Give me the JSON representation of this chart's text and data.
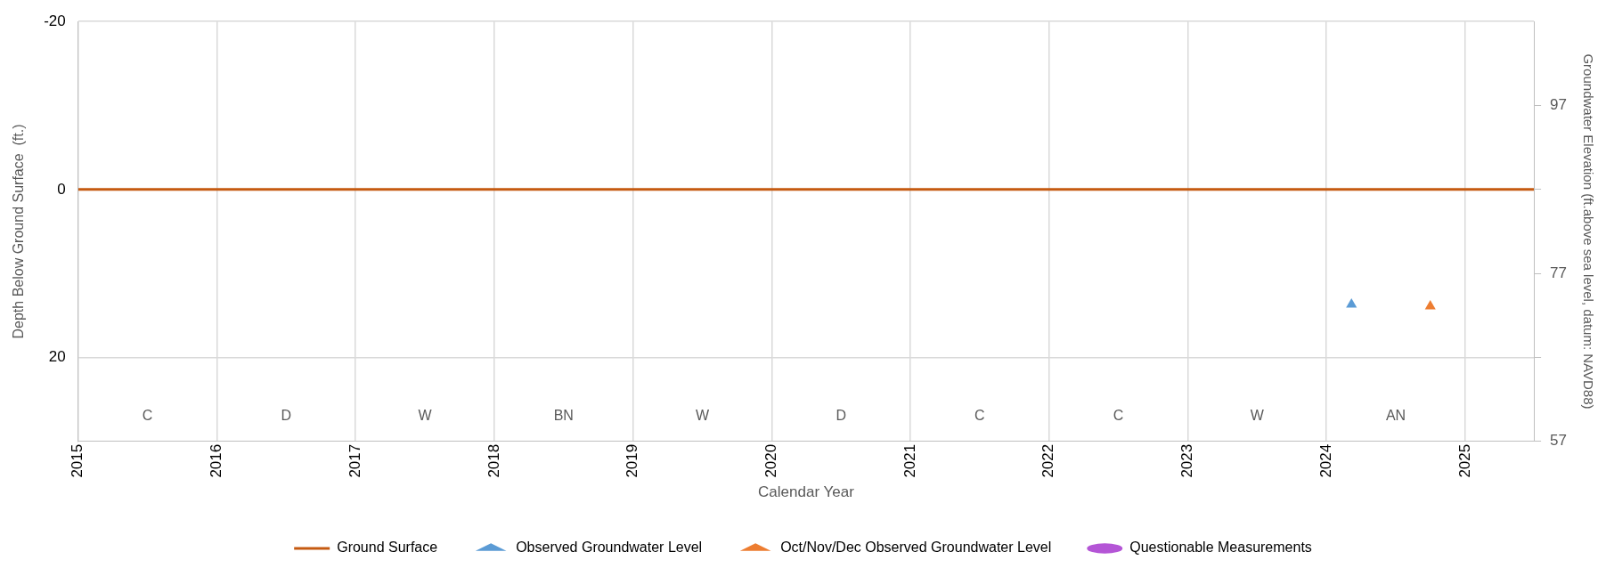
{
  "chart_data": {
    "type": "scatter",
    "xlabel": "Calendar Year",
    "ylabel": "Depth Below Ground Surface  (ft.)",
    "y2label": "Groundwater Elevation (ft.above sea level, datum: NAVD88)",
    "xlim": [
      "2015-01-01",
      "2025-07-01"
    ],
    "xticks": [
      "2015",
      "2016",
      "2017",
      "2018",
      "2019",
      "2020",
      "2021",
      "2022",
      "2023",
      "2024",
      "2025"
    ],
    "ylim": [
      30,
      -20
    ],
    "yticks": [
      -20,
      0,
      20
    ],
    "y2lim": [
      57,
      107
    ],
    "y2ticks": [
      57,
      {
        "value": 67,
        "label": null
      },
      77,
      {
        "value": 87,
        "label": null
      },
      97
    ],
    "grid": true,
    "legend": "bottom",
    "series": [
      {
        "name": "Ground Surface",
        "type": "line",
        "marker": "none",
        "color": "#c55a11",
        "x": [
          "2015-01-01",
          "2025-07-01"
        ],
        "values": [
          0,
          0
        ]
      },
      {
        "name": "Observed Groundwater Level",
        "type": "scatter",
        "marker": "triangle",
        "color": "#5b9bd5",
        "x": [
          "2024-03-07"
        ],
        "values": [
          13.7
        ]
      },
      {
        "name": "Oct/Nov/Dec Observed Groundwater Level",
        "type": "scatter",
        "marker": "triangle",
        "color": "#ed7d31",
        "x": [
          "2024-10-01"
        ],
        "values": [
          13.9
        ]
      },
      {
        "name": "Questionable Measurements",
        "type": "scatter",
        "marker": "circle",
        "color": "#b455d6"
      }
    ],
    "annotations": [
      "C",
      "D",
      "W",
      "BN",
      "W",
      "D",
      "C",
      "C",
      "W",
      "AN"
    ]
  }
}
